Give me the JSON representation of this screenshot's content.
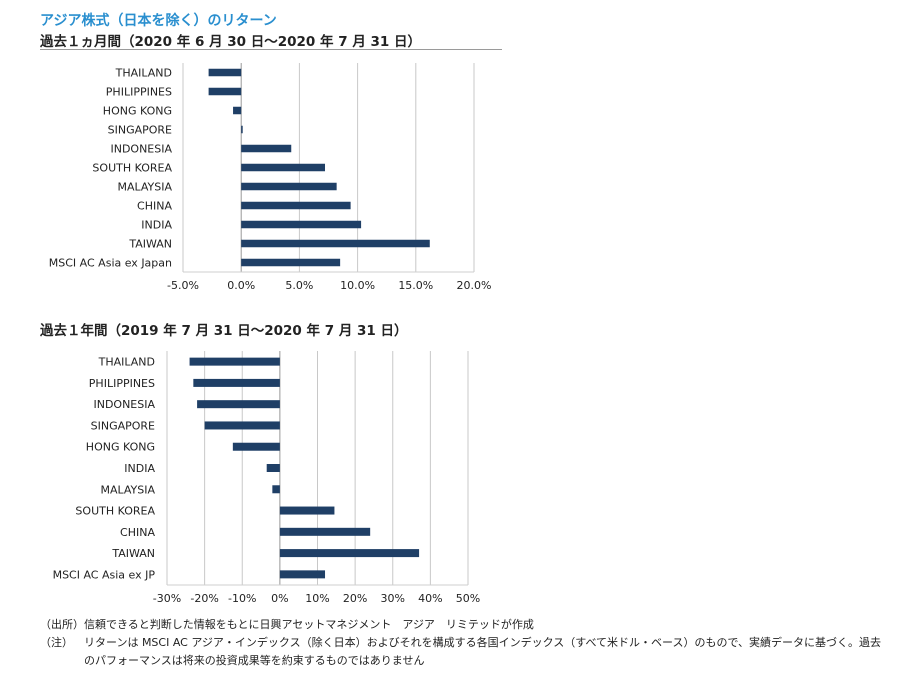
{
  "title": "アジア株式（日本を除く）のリターン",
  "chart_data": [
    {
      "type": "bar",
      "orientation": "horizontal",
      "title": "過去１ヵ月間（2020 年 6 月 30 日～2020 年 7 月 31 日）",
      "categories": [
        "THAILAND",
        "PHILIPPINES",
        "HONG KONG",
        "SINGAPORE",
        "INDONESIA",
        "SOUTH KOREA",
        "MALAYSIA",
        "CHINA",
        "INDIA",
        "TAIWAN",
        "MSCI AC Asia ex Japan"
      ],
      "values": [
        -2.8,
        -2.8,
        -0.7,
        0.1,
        4.3,
        7.2,
        8.2,
        9.4,
        10.3,
        16.2,
        8.5
      ],
      "xlim": [
        -5,
        20
      ],
      "ticks": [
        -5,
        0,
        5,
        10,
        15,
        20
      ],
      "tick_labels": [
        "-5.0%",
        "0.0%",
        "5.0%",
        "10.0%",
        "15.0%",
        "20.0%"
      ],
      "grid": true,
      "bar_color": "#1f3f66"
    },
    {
      "type": "bar",
      "orientation": "horizontal",
      "title": "過去１年間（2019 年 7 月 31 日～2020 年 7 月 31 日）",
      "categories": [
        "THAILAND",
        "PHILIPPINES",
        "INDONESIA",
        "SINGAPORE",
        "HONG KONG",
        "INDIA",
        "MALAYSIA",
        "SOUTH KOREA",
        "CHINA",
        "TAIWAN",
        "MSCI AC Asia ex JP"
      ],
      "values": [
        -24,
        -23,
        -22,
        -20,
        -12.5,
        -3.5,
        -2,
        14.5,
        24,
        37,
        12
      ],
      "xlim": [
        -30,
        50
      ],
      "ticks": [
        -30,
        -20,
        -10,
        0,
        10,
        20,
        30,
        40,
        50
      ],
      "tick_labels": [
        "-30%",
        "-20%",
        "-10%",
        "0%",
        "10%",
        "20%",
        "30%",
        "40%",
        "50%"
      ],
      "grid": true,
      "bar_color": "#1f3f66"
    }
  ],
  "footer": {
    "source": "（出所）信頼できると判断した情報をもとに日興アセットマネジメント　アジア　リミテッドが作成",
    "note_label": "（注）",
    "note_line1": "リターンは MSCI AC アジア・インデックス（除く日本）およびそれを構成する各国インデックス（すべて米ドル・ベース）のもので、実績データに基づく。過去",
    "note_line2": "のパフォーマンスは将来の投資成果等を約束するものではありません"
  }
}
